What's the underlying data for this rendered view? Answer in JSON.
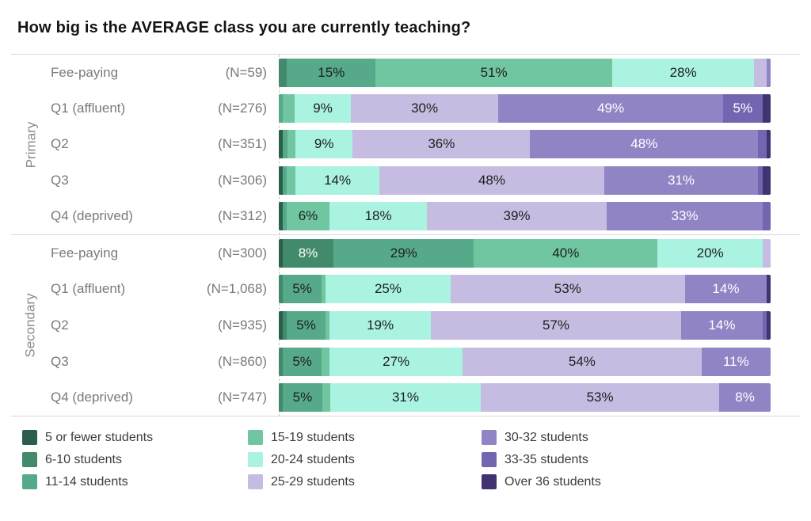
{
  "title": "How big is the AVERAGE class you are currently teaching?",
  "chart_data": {
    "type": "bar",
    "stacked": true,
    "orientation": "horizontal",
    "unit": "%",
    "xlim": [
      0,
      100
    ],
    "grid": false,
    "label_threshold": 5,
    "categories": [
      "5 or fewer students",
      "6-10 students",
      "11-14 students",
      "15-19 students",
      "20-24 students",
      "25-29 students",
      "30-32 students",
      "33-35 students",
      "Over 36 students"
    ],
    "colors": [
      "#2c5f4b",
      "#418a6c",
      "#56aa8a",
      "#6fc6a1",
      "#aaf3e0",
      "#c6bce1",
      "#9184c5",
      "#7465b1",
      "#40336f"
    ],
    "label_text_colors": [
      "#ffffff",
      "#ffffff",
      "#1e1e1e",
      "#1e1e1e",
      "#1e1e1e",
      "#1e1e1e",
      "#ffffff",
      "#ffffff",
      "#ffffff"
    ],
    "groups": [
      {
        "label": "Primary",
        "rows": [
          {
            "label": "Fee-paying",
            "n": "(N=59)",
            "values": [
              0,
              2,
              15,
              51,
              28,
              3,
              1,
              0,
              0
            ]
          },
          {
            "label": "Q1 (affluent)",
            "n": "(N=276)",
            "values": [
              0,
              0,
              1,
              3,
              9,
              30,
              49,
              5,
              2
            ]
          },
          {
            "label": "Q2",
            "n": "(N=351)",
            "values": [
              1,
              0,
              1,
              2,
              9,
              36,
              48,
              2,
              1
            ]
          },
          {
            "label": "Q3",
            "n": "(N=306)",
            "values": [
              1,
              0,
              1,
              2,
              14,
              48,
              31,
              1,
              2
            ]
          },
          {
            "label": "Q4 (deprived)",
            "n": "(N=312)",
            "values": [
              1,
              0,
              1,
              6,
              18,
              39,
              33,
              2,
              0
            ]
          }
        ]
      },
      {
        "label": "Secondary",
        "rows": [
          {
            "label": "Fee-paying",
            "n": "(N=300)",
            "values": [
              1,
              8,
              29,
              40,
              20,
              2,
              0,
              0,
              0
            ]
          },
          {
            "label": "Q1 (affluent)",
            "n": "(N=1,068)",
            "values": [
              0,
              1,
              5,
              1,
              25,
              53,
              14,
              0,
              1
            ]
          },
          {
            "label": "Q2",
            "n": "(N=935)",
            "values": [
              1,
              1,
              5,
              1,
              19,
              57,
              14,
              1,
              1
            ]
          },
          {
            "label": "Q3",
            "n": "(N=860)",
            "values": [
              0,
              1,
              5,
              2,
              27,
              54,
              11,
              0,
              0
            ]
          },
          {
            "label": "Q4 (deprived)",
            "n": "(N=747)",
            "values": [
              0,
              1,
              5,
              2,
              31,
              53,
              8,
              0,
              0
            ]
          }
        ]
      }
    ],
    "legend_position": "bottom",
    "legend_columns": 3
  }
}
